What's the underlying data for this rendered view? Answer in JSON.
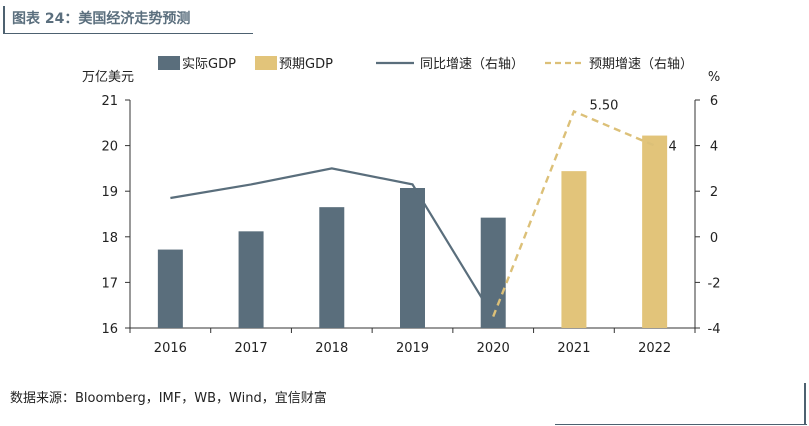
{
  "header": {
    "title": "图表 24：美国经济走势预测"
  },
  "footer": {
    "source": "数据来源：Bloomberg，IMF，WB，Wind，宜信财富"
  },
  "colors": {
    "actual": "#5a6e7c",
    "forecast": "#e2c47a",
    "growth_line": "#5a6e7c",
    "forecast_line": "#dcc078",
    "axis": "#333333"
  },
  "chart_data": {
    "type": "bar",
    "categories": [
      "2016",
      "2017",
      "2018",
      "2019",
      "2020",
      "2021",
      "2022"
    ],
    "ylabel_left": "万亿美元",
    "ylabel_right": "%",
    "ylim_left": [
      16,
      21
    ],
    "ylim_right": [
      -4,
      6
    ],
    "yticks_left": [
      "16",
      "17",
      "18",
      "19",
      "20",
      "21"
    ],
    "yticks_right": [
      "-4",
      "-2",
      "0",
      "2",
      "4",
      "6"
    ],
    "legend": [
      "实际GDP",
      "预期GDP",
      "同比增速（右轴）",
      "预期增速（右轴）"
    ],
    "legend_position": "top",
    "grid": false,
    "series": [
      {
        "name": "实际GDP",
        "type": "bar",
        "axis": "left",
        "values": [
          17.72,
          18.12,
          18.65,
          19.07,
          18.42,
          null,
          null
        ]
      },
      {
        "name": "预期GDP",
        "type": "bar",
        "axis": "left",
        "values": [
          null,
          null,
          null,
          null,
          null,
          19.44,
          20.22
        ]
      },
      {
        "name": "同比增速（右轴）",
        "type": "line",
        "axis": "right",
        "values": [
          1.7,
          2.3,
          3.0,
          2.3,
          -3.5,
          null,
          null
        ]
      },
      {
        "name": "预期增速（右轴）",
        "type": "line",
        "style": "dashed",
        "axis": "right",
        "values": [
          null,
          null,
          null,
          null,
          -3.5,
          5.5,
          4.0
        ]
      }
    ],
    "annotations": [
      {
        "text": "5.50",
        "category": "2021",
        "series": "预期增速（右轴）"
      },
      {
        "text": "4",
        "category": "2022",
        "series": "预期增速（右轴）"
      }
    ]
  }
}
